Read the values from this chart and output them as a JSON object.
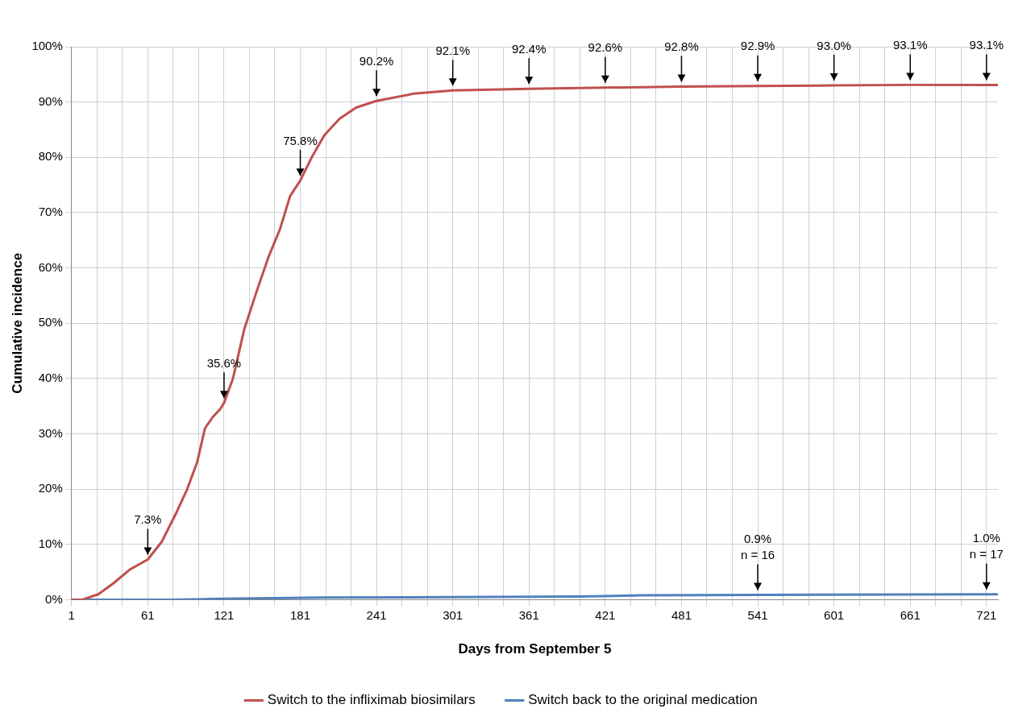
{
  "chart_data": {
    "type": "line",
    "xlabel": "Days from September 5",
    "ylabel": "Cumulative incidence",
    "xlim": [
      1,
      730
    ],
    "ylim": [
      0,
      100
    ],
    "xticks": [
      1,
      {
        "value": 21,
        "label": null
      },
      {
        "value": 41,
        "label": null
      },
      61,
      {
        "value": 81,
        "label": null
      },
      {
        "value": 101,
        "label": null
      },
      121,
      {
        "value": 141,
        "label": null
      },
      {
        "value": 161,
        "label": null
      },
      181,
      {
        "value": 201,
        "label": null
      },
      {
        "value": 221,
        "label": null
      },
      241,
      {
        "value": 261,
        "label": null
      },
      {
        "value": 281,
        "label": null
      },
      301,
      {
        "value": 321,
        "label": null
      },
      {
        "value": 341,
        "label": null
      },
      361,
      {
        "value": 381,
        "label": null
      },
      {
        "value": 401,
        "label": null
      },
      421,
      {
        "value": 441,
        "label": null
      },
      {
        "value": 461,
        "label": null
      },
      481,
      {
        "value": 501,
        "label": null
      },
      {
        "value": 521,
        "label": null
      },
      541,
      {
        "value": 561,
        "label": null
      },
      {
        "value": 581,
        "label": null
      },
      601,
      {
        "value": 621,
        "label": null
      },
      {
        "value": 641,
        "label": null
      },
      661,
      {
        "value": 681,
        "label": null
      },
      {
        "value": 701,
        "label": null
      },
      721
    ],
    "yticks": [
      {
        "value": 0,
        "label": "0%"
      },
      {
        "value": 10,
        "label": "10%"
      },
      {
        "value": 20,
        "label": "20%"
      },
      {
        "value": 30,
        "label": "30%"
      },
      {
        "value": 40,
        "label": "40%"
      },
      {
        "value": 50,
        "label": "50%"
      },
      {
        "value": 60,
        "label": "60%"
      },
      {
        "value": 70,
        "label": "70%"
      },
      {
        "value": 80,
        "label": "80%"
      },
      {
        "value": 90,
        "label": "90%"
      },
      {
        "value": 100,
        "label": "100%"
      }
    ],
    "grid": true,
    "legend": "bottom",
    "marker": "none",
    "line_style": "solid",
    "series": [
      {
        "name": "Switch to the infliximab biosimilars",
        "color": "#c0504d",
        "x": [
          1,
          9,
          22,
          34,
          47,
          61,
          72,
          84,
          92,
          100,
          106,
          112,
          118,
          121,
          128,
          137,
          147,
          156,
          165,
          173,
          181,
          190,
          200,
          212,
          225,
          241,
          270,
          301,
          361,
          421,
          481,
          541,
          601,
          661,
          730
        ],
        "values": [
          0,
          0,
          1,
          3,
          5.5,
          7.3,
          10.5,
          16,
          20,
          25,
          31,
          33,
          34.5,
          35.6,
          40,
          49,
          56,
          62,
          67,
          73,
          75.8,
          80,
          84,
          87,
          89,
          90.2,
          91.5,
          92.1,
          92.4,
          92.6,
          92.8,
          92.9,
          93.0,
          93.1,
          93.1
        ]
      },
      {
        "name": "Switch back to the original medication",
        "color": "#4f81bd",
        "x": [
          1,
          80,
          121,
          200,
          300,
          400,
          450,
          541,
          721,
          730
        ],
        "values": [
          0,
          0,
          0.2,
          0.4,
          0.5,
          0.6,
          0.8,
          0.9,
          1.0,
          1.0
        ]
      }
    ],
    "annotations": [
      {
        "text": "7.3%",
        "x": 61,
        "y": 7.3
      },
      {
        "text": "35.6%",
        "x": 121,
        "y": 35.6
      },
      {
        "text": "75.8%",
        "x": 181,
        "y": 75.8
      },
      {
        "text": "90.2%",
        "x": 241,
        "y": 90.2
      },
      {
        "text": "92.1%",
        "x": 301,
        "y": 92.1
      },
      {
        "text": "92.4%",
        "x": 361,
        "y": 92.4
      },
      {
        "text": "92.6%",
        "x": 421,
        "y": 92.6
      },
      {
        "text": "92.8%",
        "x": 481,
        "y": 92.8
      },
      {
        "text": "92.9%",
        "x": 541,
        "y": 92.9
      },
      {
        "text": "93.0%",
        "x": 601,
        "y": 93.0
      },
      {
        "text": "93.1%",
        "x": 661,
        "y": 93.1
      },
      {
        "text": "93.1%",
        "x": 721,
        "y": 93.1
      },
      {
        "text": "0.9%\nn = 16",
        "x": 541,
        "y": 0.9
      },
      {
        "text": "1.0%\nn = 17",
        "x": 721,
        "y": 1.0
      }
    ]
  }
}
